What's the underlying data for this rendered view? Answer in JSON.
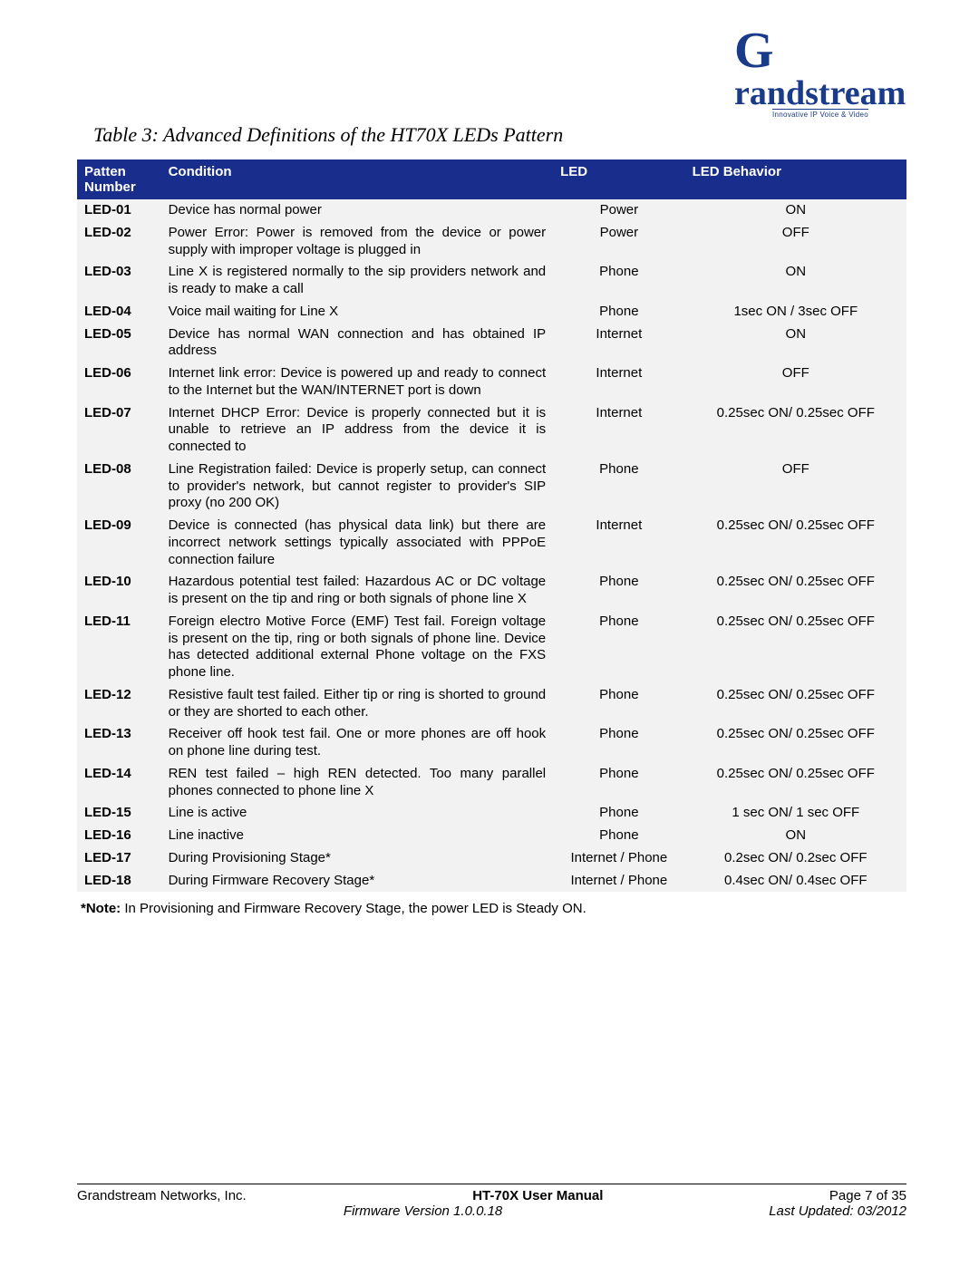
{
  "logo": {
    "brand": "Grandstream",
    "tagline": "Innovative IP Voice & Video",
    "brand_color": "#1a3a8a"
  },
  "title": "Table 3:  Advanced Definitions of the HT70X LEDs Pattern",
  "table": {
    "header_bg": "#182d8c",
    "header_fg": "#ffffff",
    "row_bg": "#f2f2f2",
    "columns": {
      "pattern": "Patten Number",
      "condition": "Condition",
      "led": "LED",
      "behavior": "LED Behavior"
    },
    "rows": [
      {
        "pattern": "LED-01",
        "condition": "Device has normal power",
        "led": "Power",
        "behavior": "ON"
      },
      {
        "pattern": "LED-02",
        "condition": "Power Error: Power is removed from the device or power supply with improper voltage is plugged in",
        "led": "Power",
        "behavior": "OFF"
      },
      {
        "pattern": "LED-03",
        "condition": "Line X is registered  normally to the sip providers  network and is ready  to make a call",
        "led": "Phone",
        "behavior": "ON"
      },
      {
        "pattern": "LED-04",
        "condition": "Voice mail waiting for Line X",
        "led": "Phone",
        "behavior": "1sec ON / 3sec OFF"
      },
      {
        "pattern": "LED-05",
        "condition": "Device has normal WAN connection and has obtained IP address",
        "led": "Internet",
        "behavior": "ON"
      },
      {
        "pattern": "LED-06",
        "condition": "Internet link error: Device is powered up and ready to connect to the Internet  but the WAN/INTERNET port is down",
        "led": "Internet",
        "behavior": "OFF"
      },
      {
        "pattern": "LED-07",
        "condition": "Internet DHCP Error: Device is properly connected but it is unable to retrieve an IP address from the device it is connected to",
        "led": "Internet",
        "behavior": "0.25sec ON/ 0.25sec OFF"
      },
      {
        "pattern": "LED-08",
        "condition": "Line  Registration failed: Device is properly setup, can connect to provider's network, but cannot register to provider's SIP proxy (no 200 OK)",
        "led": "Phone",
        "behavior": "OFF"
      },
      {
        "pattern": "LED-09",
        "condition": "Device is connected (has physical data link) but there are incorrect network settings typically associated  with PPPoE connection failure",
        "led": "Internet",
        "behavior": "0.25sec ON/ 0.25sec OFF"
      },
      {
        "pattern": "LED-10",
        "condition": "Hazardous potential test failed: Hazardous AC or DC voltage is present on the tip and ring or both signals of phone line X",
        "led": "Phone",
        "behavior": "0.25sec ON/ 0.25sec OFF"
      },
      {
        "pattern": "LED-11",
        "condition": "Foreign electro Motive Force (EMF) Test fail. Foreign voltage is present on the tip, ring or both signals of phone line. Device has detected additional external Phone voltage on the FXS phone line.",
        "led": "Phone",
        "behavior": "0.25sec ON/ 0.25sec OFF"
      },
      {
        "pattern": "LED-12",
        "condition": "Resistive fault test failed. Either tip or ring is shorted to ground or they are shorted to each other.",
        "led": "Phone",
        "behavior": "0.25sec ON/ 0.25sec OFF"
      },
      {
        "pattern": "LED-13",
        "condition": "Receiver off hook test fail. One or more phones are off hook on phone line during test.",
        "led": "Phone",
        "behavior": "0.25sec ON/ 0.25sec OFF"
      },
      {
        "pattern": "LED-14",
        "condition": "REN test failed – high REN detected. Too many parallel phones connected to phone line X",
        "led": "Phone",
        "behavior": "0.25sec ON/ 0.25sec OFF"
      },
      {
        "pattern": "LED-15",
        "condition": "Line is active",
        "led": "Phone",
        "behavior": "1 sec ON/ 1 sec OFF"
      },
      {
        "pattern": "LED-16",
        "condition": "Line inactive",
        "led": "Phone",
        "behavior": "ON"
      },
      {
        "pattern": "LED-17",
        "condition": "During Provisioning Stage*",
        "led": "Internet / Phone",
        "behavior": "0.2sec ON/ 0.2sec OFF"
      },
      {
        "pattern": "LED-18",
        "condition": "During Firmware Recovery Stage*",
        "led": "Internet / Phone",
        "behavior": "0.4sec ON/ 0.4sec OFF"
      }
    ]
  },
  "note_label": "*Note:",
  "note_text": " In Provisioning and Firmware Recovery Stage, the power LED is Steady ON.",
  "footer": {
    "left1": "Grandstream Networks, Inc.",
    "center1": "HT-70X User Manual",
    "right1": "Page 7 of 35",
    "center2": "Firmware Version 1.0.0.18",
    "right2": "Last Updated: 03/2012"
  }
}
